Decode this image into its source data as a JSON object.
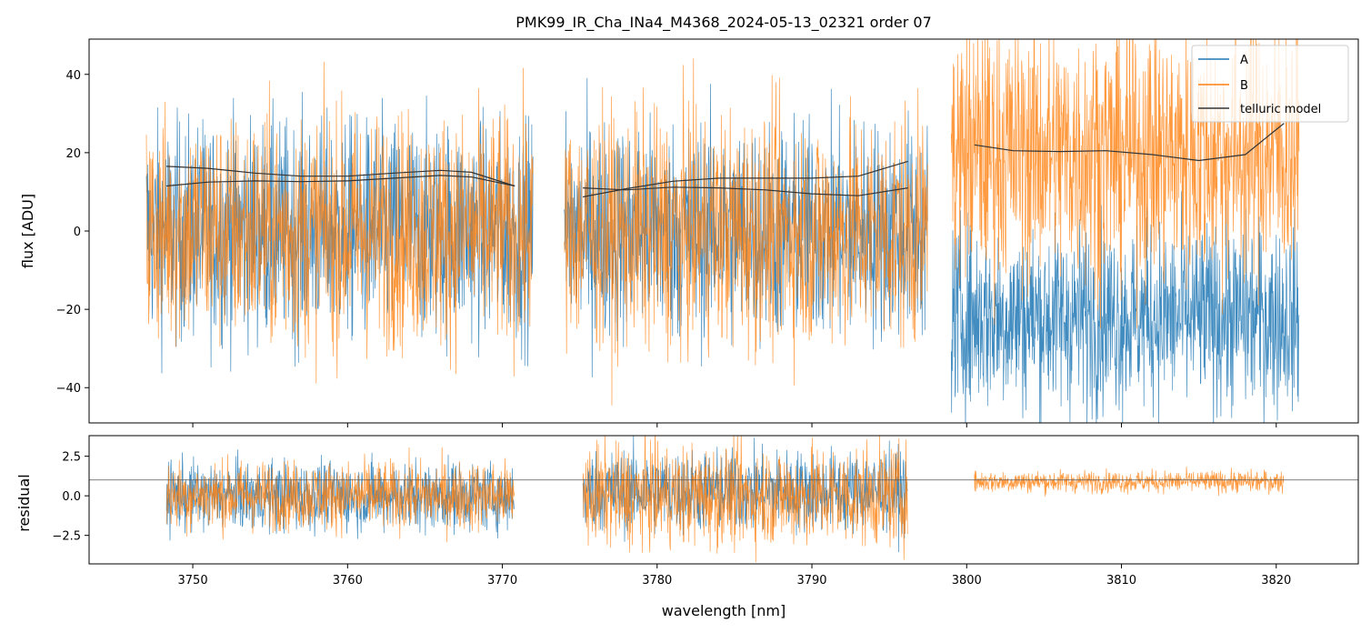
{
  "chart_data": [
    {
      "type": "line",
      "panel": "flux",
      "title": "PMK99_IR_Cha_INa4_M4368_2024-05-13_02321  order 07",
      "xlabel": "",
      "ylabel": "flux [ADU]",
      "xlim": [
        3743.3,
        3825.3
      ],
      "ylim": [
        -49,
        49
      ],
      "yticks": [
        -40,
        -20,
        0,
        20,
        40
      ],
      "yticklabels": [
        "−40",
        "−20",
        "0",
        "20",
        "40"
      ],
      "legend": {
        "placement": "top-right",
        "entries": [
          "A",
          "B",
          "telluric model"
        ]
      },
      "segments": [
        {
          "x_range": [
            3747.0,
            3772.0
          ],
          "A": {
            "mean": 0,
            "noise_std": 14
          },
          "B": {
            "mean": 0,
            "noise_std": 15
          }
        },
        {
          "x_range": [
            3774.0,
            3797.5
          ],
          "A": {
            "mean": 0,
            "noise_std": 14
          },
          "B": {
            "mean": 0,
            "noise_std": 15
          }
        },
        {
          "x_range": [
            3799.0,
            3821.5
          ],
          "A": {
            "mean": -22,
            "noise_std": 12
          },
          "B": {
            "mean": 20,
            "noise_std": 17
          }
        }
      ],
      "telluric_model": [
        {
          "x": [
            3748.3,
            3751.0,
            3754.0,
            3757.0,
            3760.0,
            3763.0,
            3766.0,
            3768.0,
            3770.8
          ],
          "y": [
            11.5,
            12.5,
            12.8,
            12.6,
            12.8,
            13.5,
            14.2,
            13.8,
            11.5
          ]
        },
        {
          "x": [
            3748.3,
            3751.0,
            3754.0,
            3757.0,
            3760.0,
            3763.0,
            3766.0,
            3768.0,
            3770.8
          ],
          "y": [
            16.5,
            16.0,
            14.8,
            14.0,
            14.0,
            14.8,
            15.5,
            15.0,
            11.5
          ]
        },
        {
          "x": [
            3775.2,
            3778.0,
            3781.0,
            3784.0,
            3787.0,
            3790.0,
            3793.0,
            3796.2
          ],
          "y": [
            11.0,
            10.5,
            11.2,
            11.0,
            10.5,
            9.5,
            9.0,
            11.0
          ]
        },
        {
          "x": [
            3775.2,
            3778.0,
            3781.0,
            3784.0,
            3787.0,
            3790.0,
            3793.0,
            3796.2
          ],
          "y": [
            8.7,
            10.8,
            12.7,
            13.5,
            13.5,
            13.5,
            14.0,
            17.8
          ]
        },
        {
          "x": [
            3800.5,
            3803.0,
            3806.0,
            3809.0,
            3812.0,
            3815.0,
            3818.0,
            3820.5
          ],
          "y": [
            22.0,
            20.5,
            20.3,
            20.5,
            19.5,
            18.0,
            19.5,
            27.5
          ]
        }
      ]
    },
    {
      "type": "line",
      "panel": "residual",
      "xlabel": "wavelength [nm]",
      "ylabel": "residual",
      "xlim": [
        3743.3,
        3825.3
      ],
      "ylim": [
        -4.3,
        3.8
      ],
      "xticks": [
        3750,
        3760,
        3770,
        3780,
        3790,
        3800,
        3810,
        3820
      ],
      "xticklabels": [
        "3750",
        "3760",
        "3770",
        "3780",
        "3790",
        "3800",
        "3810",
        "3820"
      ],
      "yticks": [
        -2.5,
        0.0,
        2.5
      ],
      "yticklabels": [
        "−2.5",
        "0.0",
        "2.5"
      ],
      "reference_line_y": 1.0,
      "segments": [
        {
          "x_range": [
            3748.3,
            3770.8
          ],
          "A": {
            "mean": 0,
            "noise_std": 1.1
          },
          "B": {
            "mean": 0,
            "noise_std": 1.1
          }
        },
        {
          "x_range": [
            3775.2,
            3796.2
          ],
          "A": {
            "mean": 0.3,
            "noise_std": 1.3
          },
          "B": {
            "mean": 0,
            "noise_std": 1.6
          }
        },
        {
          "x_range": [
            3800.5,
            3820.5
          ],
          "B": {
            "mean": 0.9,
            "noise_std": 0.35
          }
        }
      ]
    }
  ],
  "colors": {
    "A": "#1f77b4",
    "B": "#ff7f0e",
    "telluric": "#333333",
    "residual_line": "#555555"
  },
  "legend_labels": {
    "A": "A",
    "B": "B",
    "telluric": "telluric model"
  }
}
